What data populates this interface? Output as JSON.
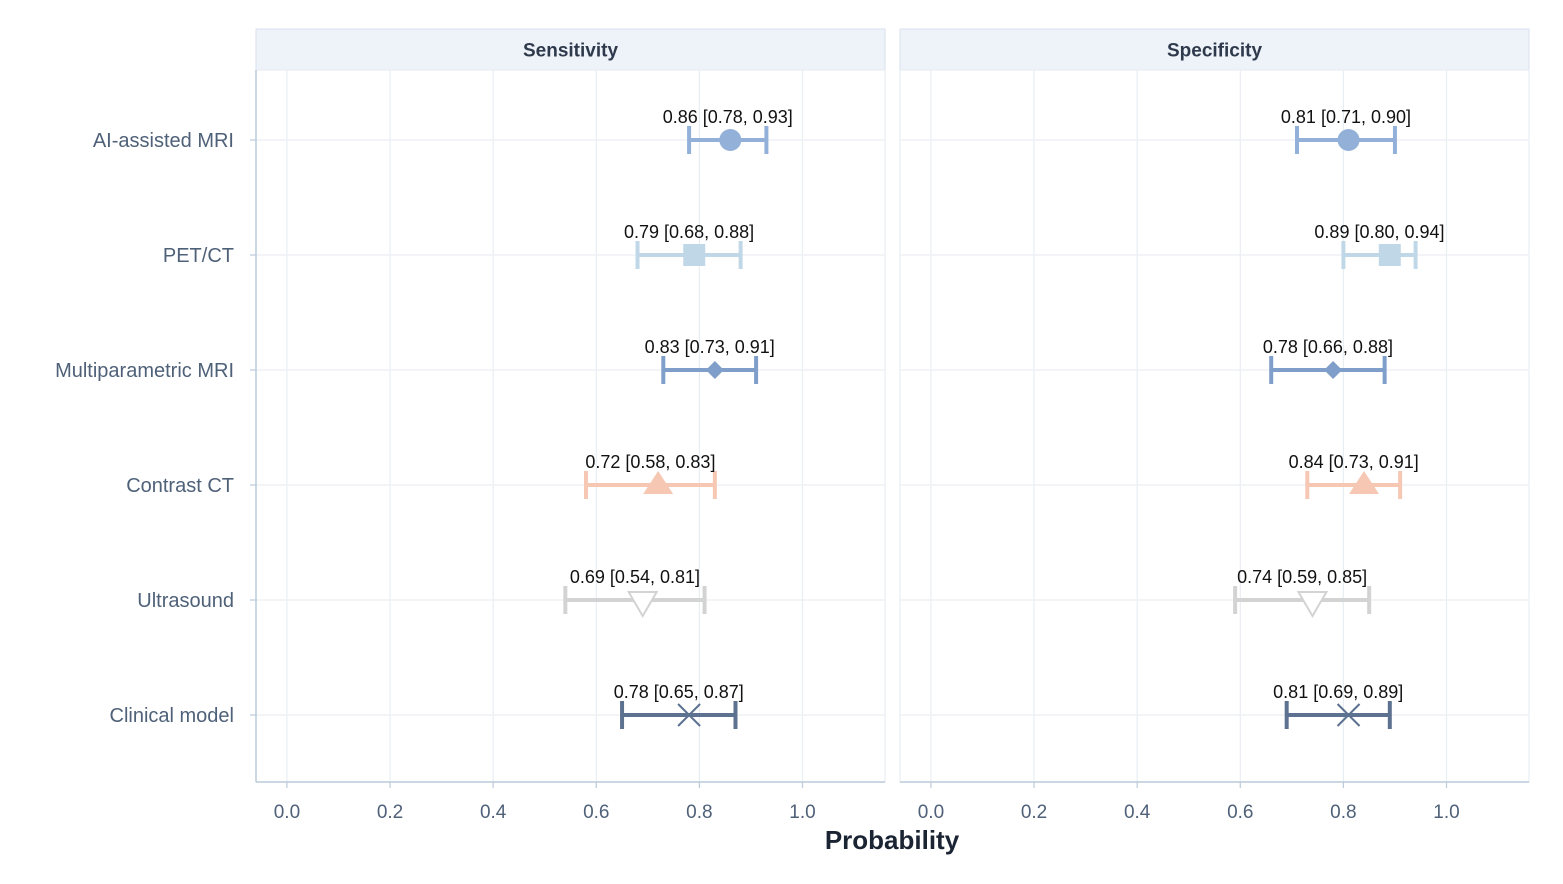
{
  "chart_data": {
    "type": "forest",
    "xlabel": "Probability",
    "xlim": [
      -0.06,
      1.16
    ],
    "x_ticks": [
      "0.0",
      "0.2",
      "0.4",
      "0.6",
      "0.8",
      "1.0"
    ],
    "x_tick_values": [
      0.0,
      0.2,
      0.4,
      0.6,
      0.8,
      1.0
    ],
    "grid": true,
    "categories": [
      "AI-assisted MRI",
      "PET/CT",
      "Multiparametric MRI",
      "Contrast CT",
      "Ultrasound",
      "Clinical model"
    ],
    "styles": [
      {
        "color": "#93b1d8",
        "shape": "circle"
      },
      {
        "color": "#c0d7e8",
        "shape": "square"
      },
      {
        "color": "#7f9ec9",
        "shape": "diamond"
      },
      {
        "color": "#f6c8b4",
        "shape": "triangle-up"
      },
      {
        "color": "#d3d3d3",
        "shape": "triangle-down-open"
      },
      {
        "color": "#5d7190",
        "shape": "cross"
      }
    ],
    "panels": [
      {
        "title": "Sensitivity",
        "points": [
          {
            "estimate": 0.86,
            "lower": 0.78,
            "upper": 0.93,
            "label": "0.86 [0.78, 0.93]"
          },
          {
            "estimate": 0.79,
            "lower": 0.68,
            "upper": 0.88,
            "label": "0.79 [0.68, 0.88]"
          },
          {
            "estimate": 0.83,
            "lower": 0.73,
            "upper": 0.91,
            "label": "0.83 [0.73, 0.91]"
          },
          {
            "estimate": 0.72,
            "lower": 0.58,
            "upper": 0.83,
            "label": "0.72 [0.58, 0.83]"
          },
          {
            "estimate": 0.69,
            "lower": 0.54,
            "upper": 0.81,
            "label": "0.69 [0.54, 0.81]"
          },
          {
            "estimate": 0.78,
            "lower": 0.65,
            "upper": 0.87,
            "label": "0.78 [0.65, 0.87]"
          }
        ]
      },
      {
        "title": "Specificity",
        "points": [
          {
            "estimate": 0.81,
            "lower": 0.71,
            "upper": 0.9,
            "label": "0.81 [0.71, 0.90]"
          },
          {
            "estimate": 0.89,
            "lower": 0.8,
            "upper": 0.94,
            "label": "0.89 [0.80, 0.94]"
          },
          {
            "estimate": 0.78,
            "lower": 0.66,
            "upper": 0.88,
            "label": "0.78 [0.66, 0.88]"
          },
          {
            "estimate": 0.84,
            "lower": 0.73,
            "upper": 0.91,
            "label": "0.84 [0.73, 0.91]"
          },
          {
            "estimate": 0.74,
            "lower": 0.59,
            "upper": 0.85,
            "label": "0.74 [0.59, 0.85]"
          },
          {
            "estimate": 0.81,
            "lower": 0.69,
            "upper": 0.89,
            "label": "0.81 [0.69, 0.89]"
          }
        ]
      }
    ]
  }
}
